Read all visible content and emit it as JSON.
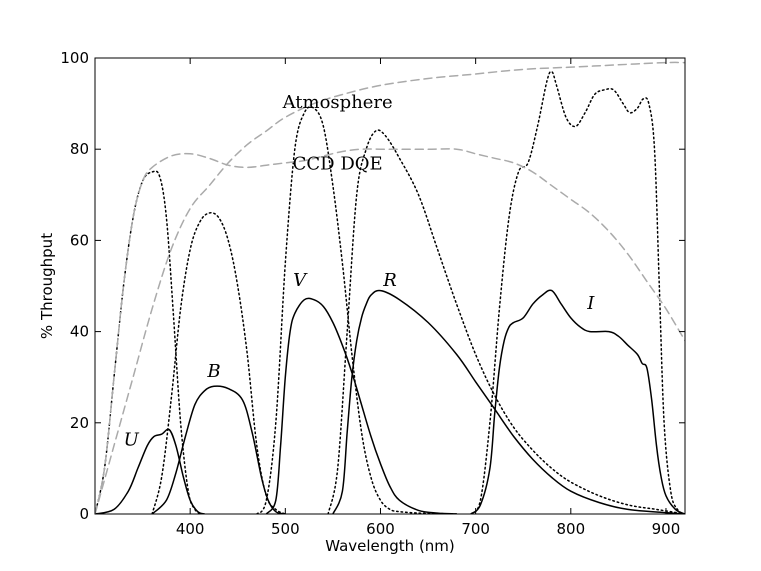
{
  "chart_data": {
    "type": "line",
    "title": "",
    "xlabel": "Wavelength (nm)",
    "ylabel": "% Throughput",
    "xlim": [
      300,
      920
    ],
    "ylim": [
      0,
      100
    ],
    "xticks": [
      400,
      500,
      600,
      700,
      800,
      900
    ],
    "yticks": [
      0,
      20,
      40,
      60,
      80,
      100
    ],
    "grid": false,
    "series": [
      {
        "name": "U",
        "style": "solid",
        "color": "#000000",
        "x": [
          300,
          320,
          335,
          345,
          355,
          362,
          370,
          378,
          385,
          393,
          400,
          408,
          415
        ],
        "y": [
          0,
          1,
          5,
          10,
          15,
          17,
          17.5,
          18.5,
          15,
          8,
          3,
          0.5,
          0
        ]
      },
      {
        "name": "B",
        "style": "solid",
        "color": "#000000",
        "x": [
          360,
          375,
          385,
          395,
          405,
          415,
          425,
          440,
          455,
          465,
          475,
          482,
          490,
          500
        ],
        "y": [
          0,
          3,
          9,
          17,
          24,
          27,
          28,
          27.5,
          25,
          18,
          8,
          3,
          0.5,
          0
        ]
      },
      {
        "name": "V",
        "style": "solid",
        "color": "#000000",
        "x": [
          480,
          490,
          495,
          500,
          505,
          510,
          520,
          530,
          540,
          550,
          560,
          570,
          580,
          590,
          600,
          610,
          620,
          640,
          660,
          680
        ],
        "y": [
          0,
          3,
          15,
          30,
          40,
          44,
          47,
          47,
          45.5,
          42,
          37,
          31,
          24,
          17,
          11,
          6,
          3,
          0.8,
          0.2,
          0
        ]
      },
      {
        "name": "R",
        "style": "solid",
        "color": "#000000",
        "x": [
          550,
          560,
          565,
          570,
          575,
          580,
          585,
          590,
          600,
          620,
          650,
          680,
          700,
          720,
          740,
          760,
          780,
          800,
          830,
          860,
          900,
          920
        ],
        "y": [
          0,
          5,
          18,
          30,
          38,
          43,
          46,
          48,
          49,
          47,
          42,
          35,
          29,
          23,
          17,
          12,
          8,
          5,
          2.5,
          1,
          0.3,
          0
        ]
      },
      {
        "name": "I",
        "style": "solid",
        "color": "#000000",
        "x": [
          695,
          705,
          715,
          720,
          725,
          730,
          735,
          740,
          750,
          760,
          770,
          780,
          790,
          800,
          810,
          820,
          840,
          850,
          860,
          870,
          875,
          880,
          885,
          890,
          895,
          900,
          910,
          920
        ],
        "y": [
          0,
          2,
          10,
          22,
          32,
          38,
          41,
          42,
          43,
          46,
          48,
          49,
          46,
          43,
          41,
          40,
          40,
          39,
          37,
          35,
          33,
          32,
          25,
          15,
          8,
          4,
          1,
          0
        ]
      },
      {
        "name": "U filter",
        "style": "dotted",
        "color": "#000000",
        "x": [
          300,
          310,
          320,
          330,
          340,
          350,
          360,
          368,
          375,
          382,
          390,
          398,
          405,
          412
        ],
        "y": [
          0,
          10,
          30,
          50,
          65,
          73,
          75,
          74,
          65,
          45,
          20,
          5,
          1,
          0
        ]
      },
      {
        "name": "B filter",
        "style": "dotted",
        "color": "#000000",
        "x": [
          360,
          370,
          380,
          390,
          400,
          410,
          420,
          430,
          440,
          450,
          460,
          470,
          480,
          490,
          500
        ],
        "y": [
          0,
          8,
          25,
          45,
          58,
          64,
          66,
          65,
          60,
          50,
          35,
          15,
          4,
          1,
          0
        ]
      },
      {
        "name": "V filter",
        "style": "dotted",
        "color": "#000000",
        "x": [
          470,
          480,
          490,
          500,
          510,
          520,
          530,
          540,
          550,
          560,
          570,
          580,
          590,
          600,
          610,
          620,
          640,
          660,
          680
        ],
        "y": [
          0,
          3,
          20,
          55,
          80,
          88,
          89,
          85,
          72,
          55,
          35,
          18,
          8,
          3,
          1,
          0.5,
          0.2,
          0.1,
          0
        ]
      },
      {
        "name": "R filter",
        "style": "dotted",
        "color": "#000000",
        "x": [
          545,
          555,
          565,
          575,
          585,
          595,
          605,
          620,
          640,
          660,
          680,
          700,
          720,
          740,
          760,
          780,
          800,
          830,
          860,
          890,
          920
        ],
        "y": [
          0,
          10,
          40,
          70,
          80,
          84,
          83,
          78,
          70,
          58,
          46,
          35,
          26,
          19,
          14,
          10,
          7,
          4,
          2,
          1,
          0
        ]
      },
      {
        "name": "I filter",
        "style": "dotted",
        "color": "#000000",
        "x": [
          695,
          705,
          715,
          725,
          735,
          745,
          755,
          765,
          775,
          780,
          785,
          795,
          805,
          815,
          825,
          835,
          845,
          855,
          862,
          870,
          876,
          882,
          888,
          893,
          898,
          905,
          912,
          920
        ],
        "y": [
          0,
          3,
          20,
          45,
          65,
          75,
          77,
          85,
          95,
          97,
          94,
          87,
          85,
          88,
          92,
          93,
          93,
          90,
          88,
          89,
          91,
          90,
          80,
          50,
          20,
          5,
          1,
          0
        ]
      },
      {
        "name": "Atmosphere",
        "style": "dashed",
        "color": "#aaaaaa",
        "x": [
          300,
          320,
          340,
          360,
          380,
          400,
          420,
          440,
          460,
          480,
          500,
          530,
          560,
          600,
          650,
          700,
          750,
          800,
          850,
          900,
          920
        ],
        "y": [
          0,
          15,
          30,
          45,
          58,
          67,
          72,
          77,
          81,
          84,
          87,
          90,
          92,
          94,
          95.5,
          96.5,
          97.5,
          98,
          98.5,
          99,
          99
        ]
      },
      {
        "name": "CCD DQE",
        "style": "dashed",
        "color": "#aaaaaa",
        "x": [
          300,
          310,
          320,
          330,
          340,
          350,
          360,
          380,
          400,
          420,
          440,
          460,
          480,
          500,
          520,
          540,
          560,
          580,
          600,
          620,
          650,
          680,
          700,
          720,
          740,
          760,
          780,
          800,
          820,
          840,
          860,
          880,
          900,
          920
        ],
        "y": [
          0,
          10,
          30,
          50,
          65,
          73,
          76,
          78.5,
          79,
          78,
          76.5,
          76,
          76.5,
          77,
          77.5,
          78.5,
          79.5,
          80,
          80,
          80,
          80,
          80,
          79,
          78,
          77,
          75,
          72,
          69,
          66,
          62,
          57,
          51,
          45,
          38
        ]
      }
    ],
    "annotations": [
      {
        "text": "Atmosphere",
        "x": 555,
        "y": 89,
        "style": "normal"
      },
      {
        "text": "CCD DQE",
        "x": 555,
        "y": 75.5,
        "style": "normal"
      },
      {
        "text": "U",
        "x": 338,
        "y": 15,
        "style": "italic"
      },
      {
        "text": "B",
        "x": 425,
        "y": 30,
        "style": "italic"
      },
      {
        "text": "V",
        "x": 515,
        "y": 50,
        "style": "italic"
      },
      {
        "text": "R",
        "x": 610,
        "y": 50,
        "style": "italic"
      },
      {
        "text": "I",
        "x": 821,
        "y": 45,
        "style": "italic"
      }
    ]
  }
}
